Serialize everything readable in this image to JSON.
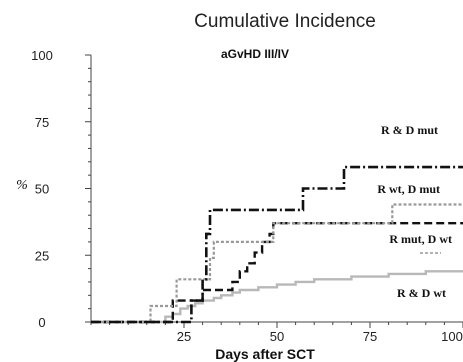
{
  "chart_data": {
    "type": "line",
    "title": "Cumulative Incidence",
    "subtitle": "aGvHD III/IV",
    "xlabel": "Days after SCT",
    "ylabel": "%",
    "xlim": [
      0,
      100
    ],
    "ylim": [
      0,
      100
    ],
    "xticks": [
      25,
      50,
      75,
      100
    ],
    "yticks": [
      0,
      25,
      50,
      75,
      100
    ],
    "series": [
      {
        "name": "R & D mut",
        "color": "#111111",
        "dash": "10,3,2,3",
        "width": 2.6,
        "x": [
          0,
          22,
          27,
          30,
          31,
          32,
          56,
          57,
          67,
          68,
          100
        ],
        "y": [
          0,
          0,
          8,
          16,
          33,
          42,
          42,
          50,
          50,
          58,
          58
        ]
      },
      {
        "name": "R wt, D mut",
        "color": "#999999",
        "dash": "3,2",
        "width": 2.2,
        "x": [
          0,
          14,
          16,
          22,
          23,
          30,
          32,
          33,
          48,
          49,
          80,
          81,
          100
        ],
        "y": [
          0,
          0,
          6,
          6,
          16,
          16,
          24,
          30,
          30,
          37,
          37,
          44,
          44
        ]
      },
      {
        "name": "R mut, D wt",
        "color": "#111111",
        "dash": "8,4",
        "width": 2.4,
        "x": [
          0,
          21,
          22,
          29,
          30,
          32,
          38,
          40,
          42,
          44,
          46,
          48,
          49,
          75,
          76,
          100
        ],
        "y": [
          0,
          0,
          8,
          8,
          12,
          12,
          15,
          19,
          22,
          26,
          30,
          33,
          37,
          37,
          37,
          37
        ]
      },
      {
        "name": "R & D wt",
        "color": "#b8b8b8",
        "dash": "",
        "width": 2.4,
        "x": [
          0,
          18,
          20,
          22,
          24,
          26,
          28,
          30,
          33,
          35,
          38,
          40,
          45,
          50,
          55,
          60,
          70,
          80,
          90,
          100
        ],
        "y": [
          0,
          0,
          2,
          3,
          5,
          6,
          7,
          8,
          9,
          10,
          11,
          12,
          13,
          14,
          15,
          16,
          17,
          18,
          19,
          19
        ]
      }
    ]
  }
}
